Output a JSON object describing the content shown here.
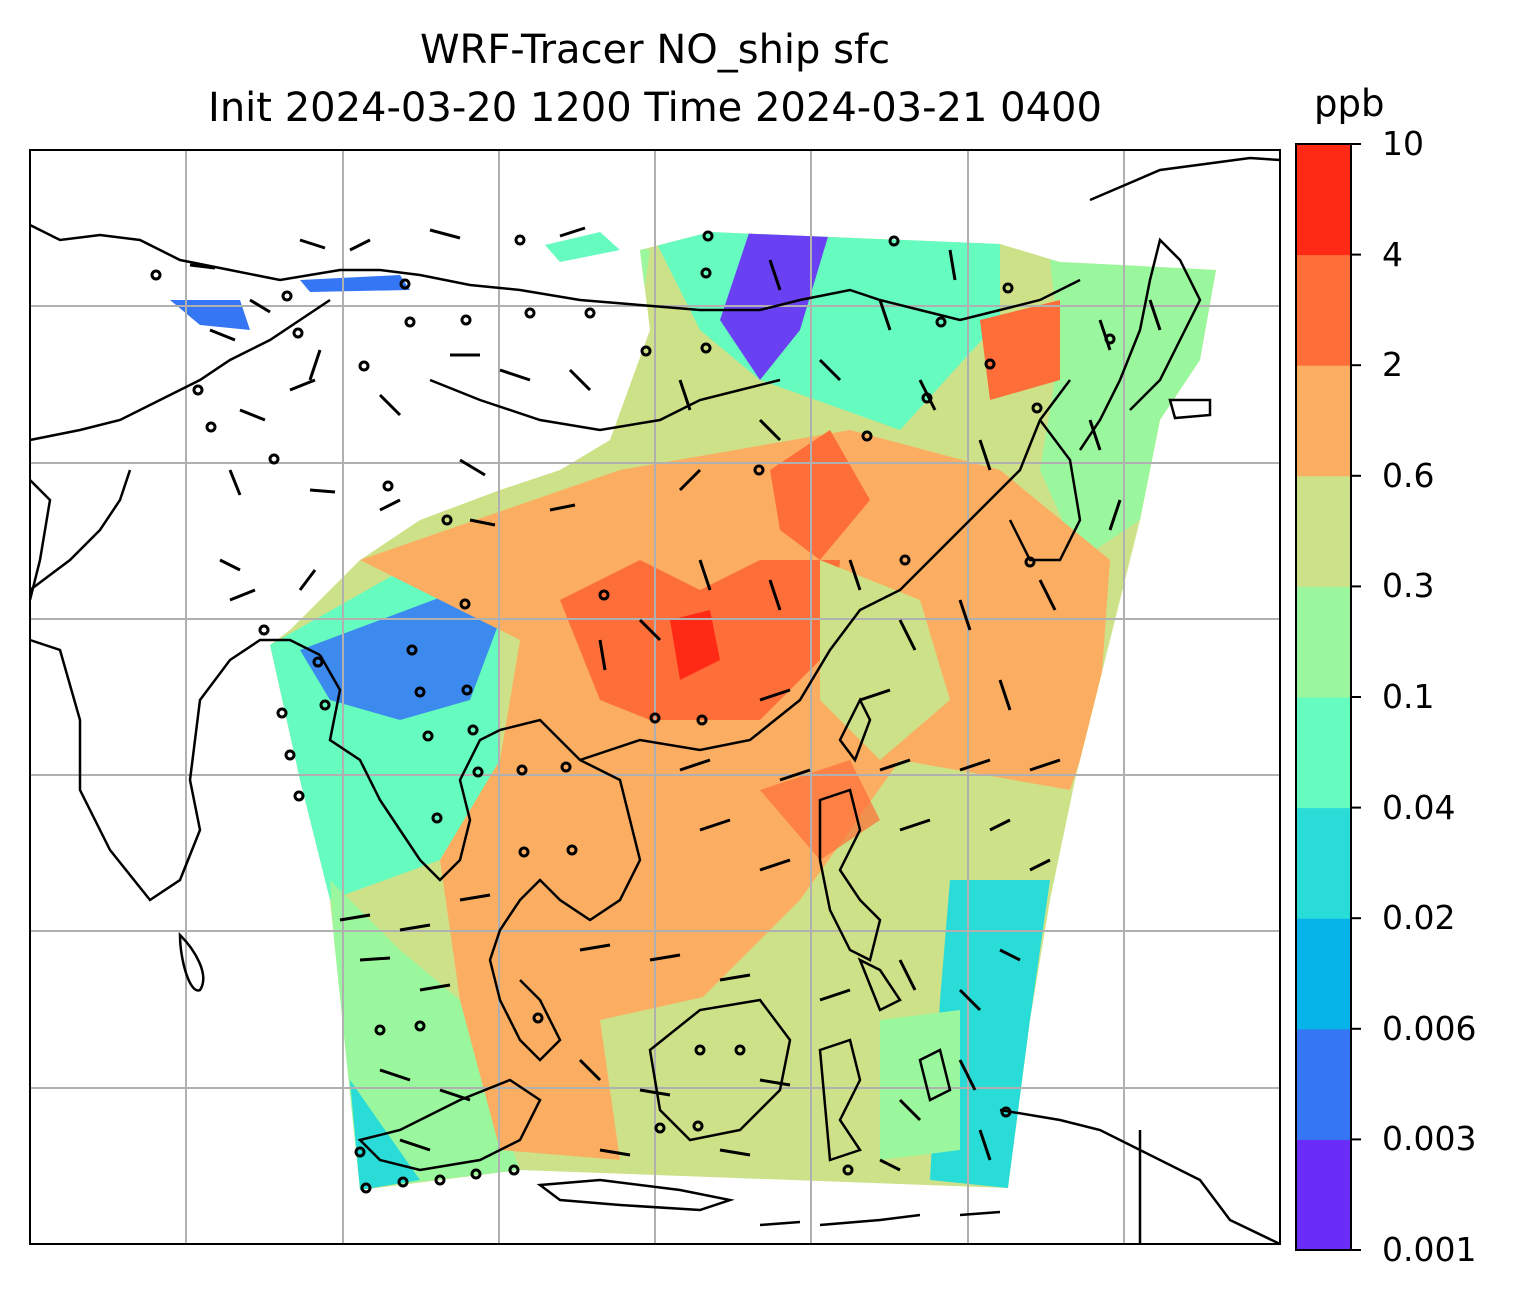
{
  "title": {
    "line1": "WRF-Tracer NO_ship sfc",
    "line2": "Init 2024-03-20 1200 Time 2024-03-21 0400"
  },
  "colorbar": {
    "units": "ppb",
    "tick_labels": [
      "0.001",
      "0.003",
      "0.006",
      "0.02",
      "0.04",
      "0.1",
      "0.3",
      "0.6",
      "2",
      "4",
      "10"
    ],
    "colors": [
      "#6a2cf7",
      "#3576f4",
      "#06b4ea",
      "#2adcd8",
      "#66fbbf",
      "#9af79d",
      "#cde288",
      "#fbae62",
      "#fd6e38",
      "#fe2a16"
    ]
  },
  "map": {
    "field": "NO_ship surface concentration",
    "overlays": [
      "wind-barbs",
      "coastlines",
      "gridlines"
    ],
    "colors": {
      "coastline": "#000000",
      "gridline": "#b0b0b0",
      "barb": "#000000"
    }
  }
}
